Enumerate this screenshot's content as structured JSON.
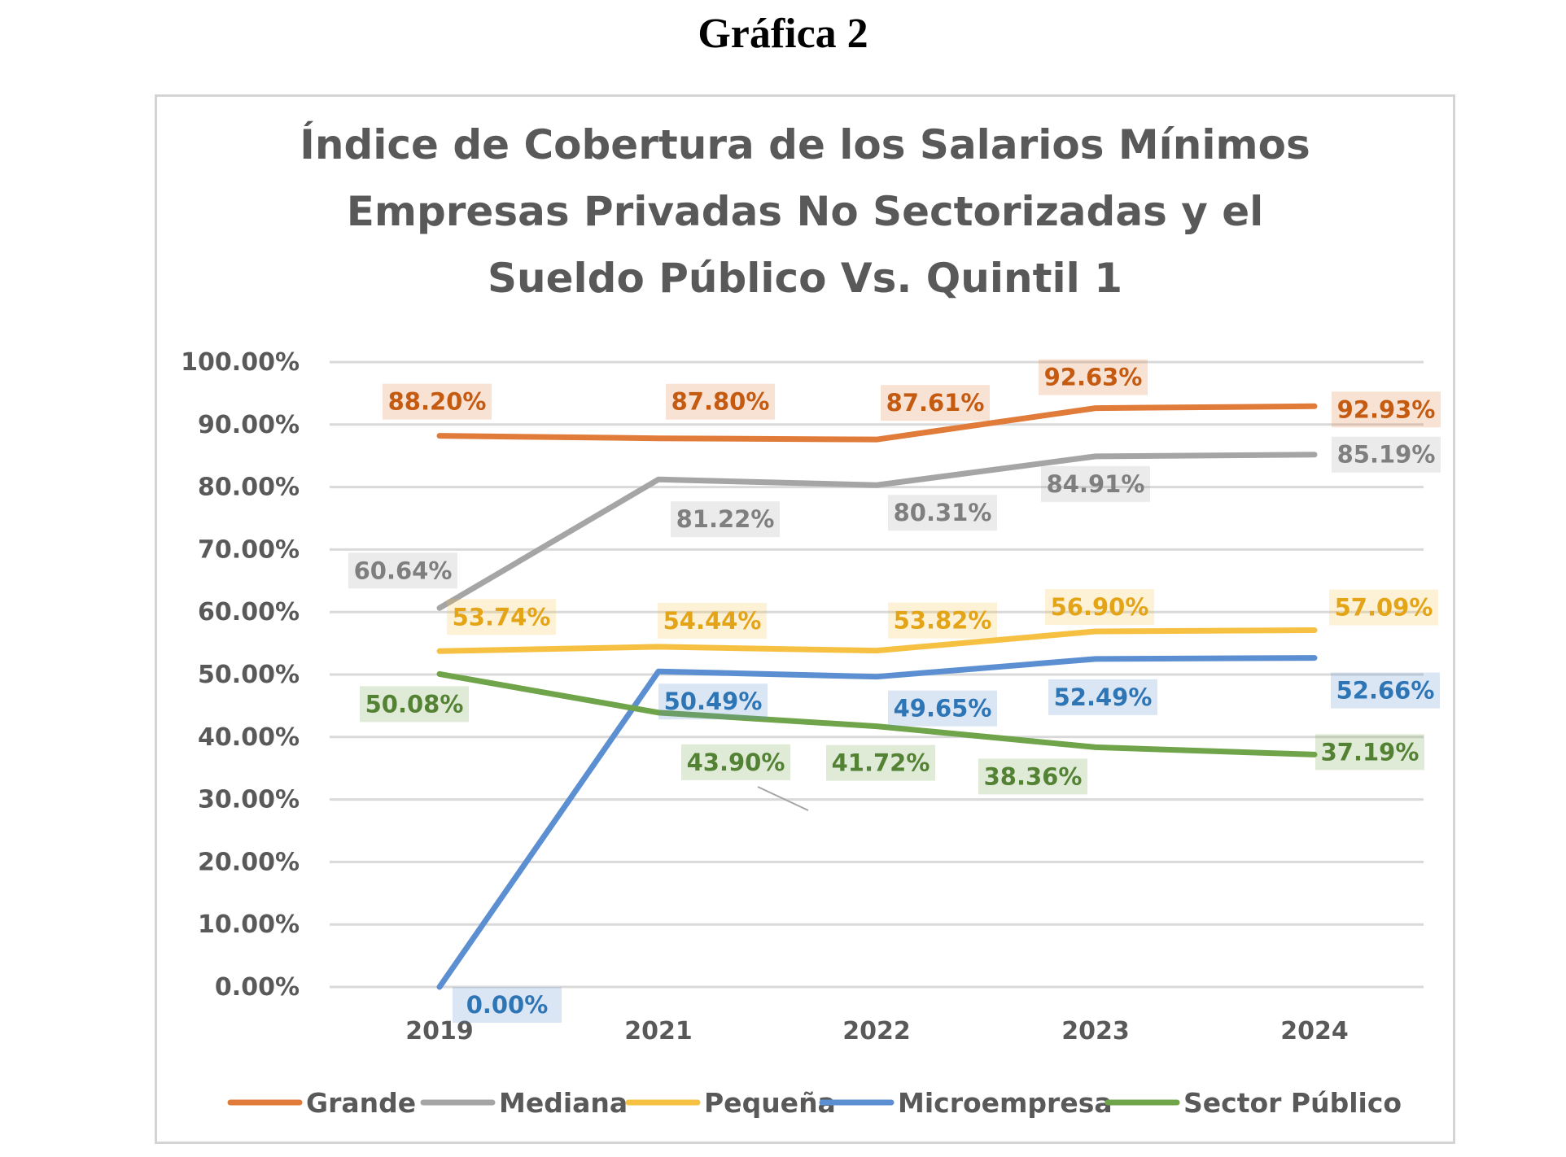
{
  "heading": "Gráfica 2",
  "chart_data": {
    "type": "line",
    "title": [
      "Índice de Cobertura de los Salarios Mínimos",
      "Empresas Privadas No Sectorizadas y el",
      "Sueldo Público Vs. Quintil 1"
    ],
    "categories": [
      "2019",
      "2021",
      "2022",
      "2023",
      "2024"
    ],
    "y_ticks": [
      "0.00%",
      "10.00%",
      "20.00%",
      "30.00%",
      "40.00%",
      "50.00%",
      "60.00%",
      "70.00%",
      "80.00%",
      "90.00%",
      "100.00%"
    ],
    "ylim": [
      0,
      100
    ],
    "grid": true,
    "legend_position": "bottom",
    "series": [
      {
        "name": "Grande",
        "color": "#e07b39",
        "values": [
          88.2,
          87.8,
          87.61,
          92.63,
          92.93
        ],
        "labels": [
          "88.20%",
          "87.80%",
          "87.61%",
          "92.63%",
          "92.93%"
        ]
      },
      {
        "name": "Mediana",
        "color": "#a5a5a5",
        "values": [
          60.64,
          81.22,
          80.31,
          84.91,
          85.19
        ],
        "labels": [
          "60.64%",
          "81.22%",
          "80.31%",
          "84.91%",
          "85.19%"
        ]
      },
      {
        "name": "Pequeña",
        "color": "#f6c143",
        "values": [
          53.74,
          54.44,
          53.82,
          56.9,
          57.09
        ],
        "labels": [
          "53.74%",
          "54.44%",
          "53.82%",
          "56.90%",
          "57.09%"
        ]
      },
      {
        "name": "Microempresa",
        "color": "#5b8fd1",
        "values": [
          0.0,
          50.49,
          49.65,
          52.49,
          52.66
        ],
        "labels": [
          "0.00%",
          "50.49%",
          "49.65%",
          "52.49%",
          "52.66%"
        ]
      },
      {
        "name": "Sector Público",
        "color": "#70a44a",
        "values": [
          50.08,
          43.9,
          41.72,
          38.36,
          37.19
        ],
        "labels": [
          "50.08%",
          "43.90%",
          "41.72%",
          "38.36%",
          "37.19%"
        ]
      }
    ]
  }
}
